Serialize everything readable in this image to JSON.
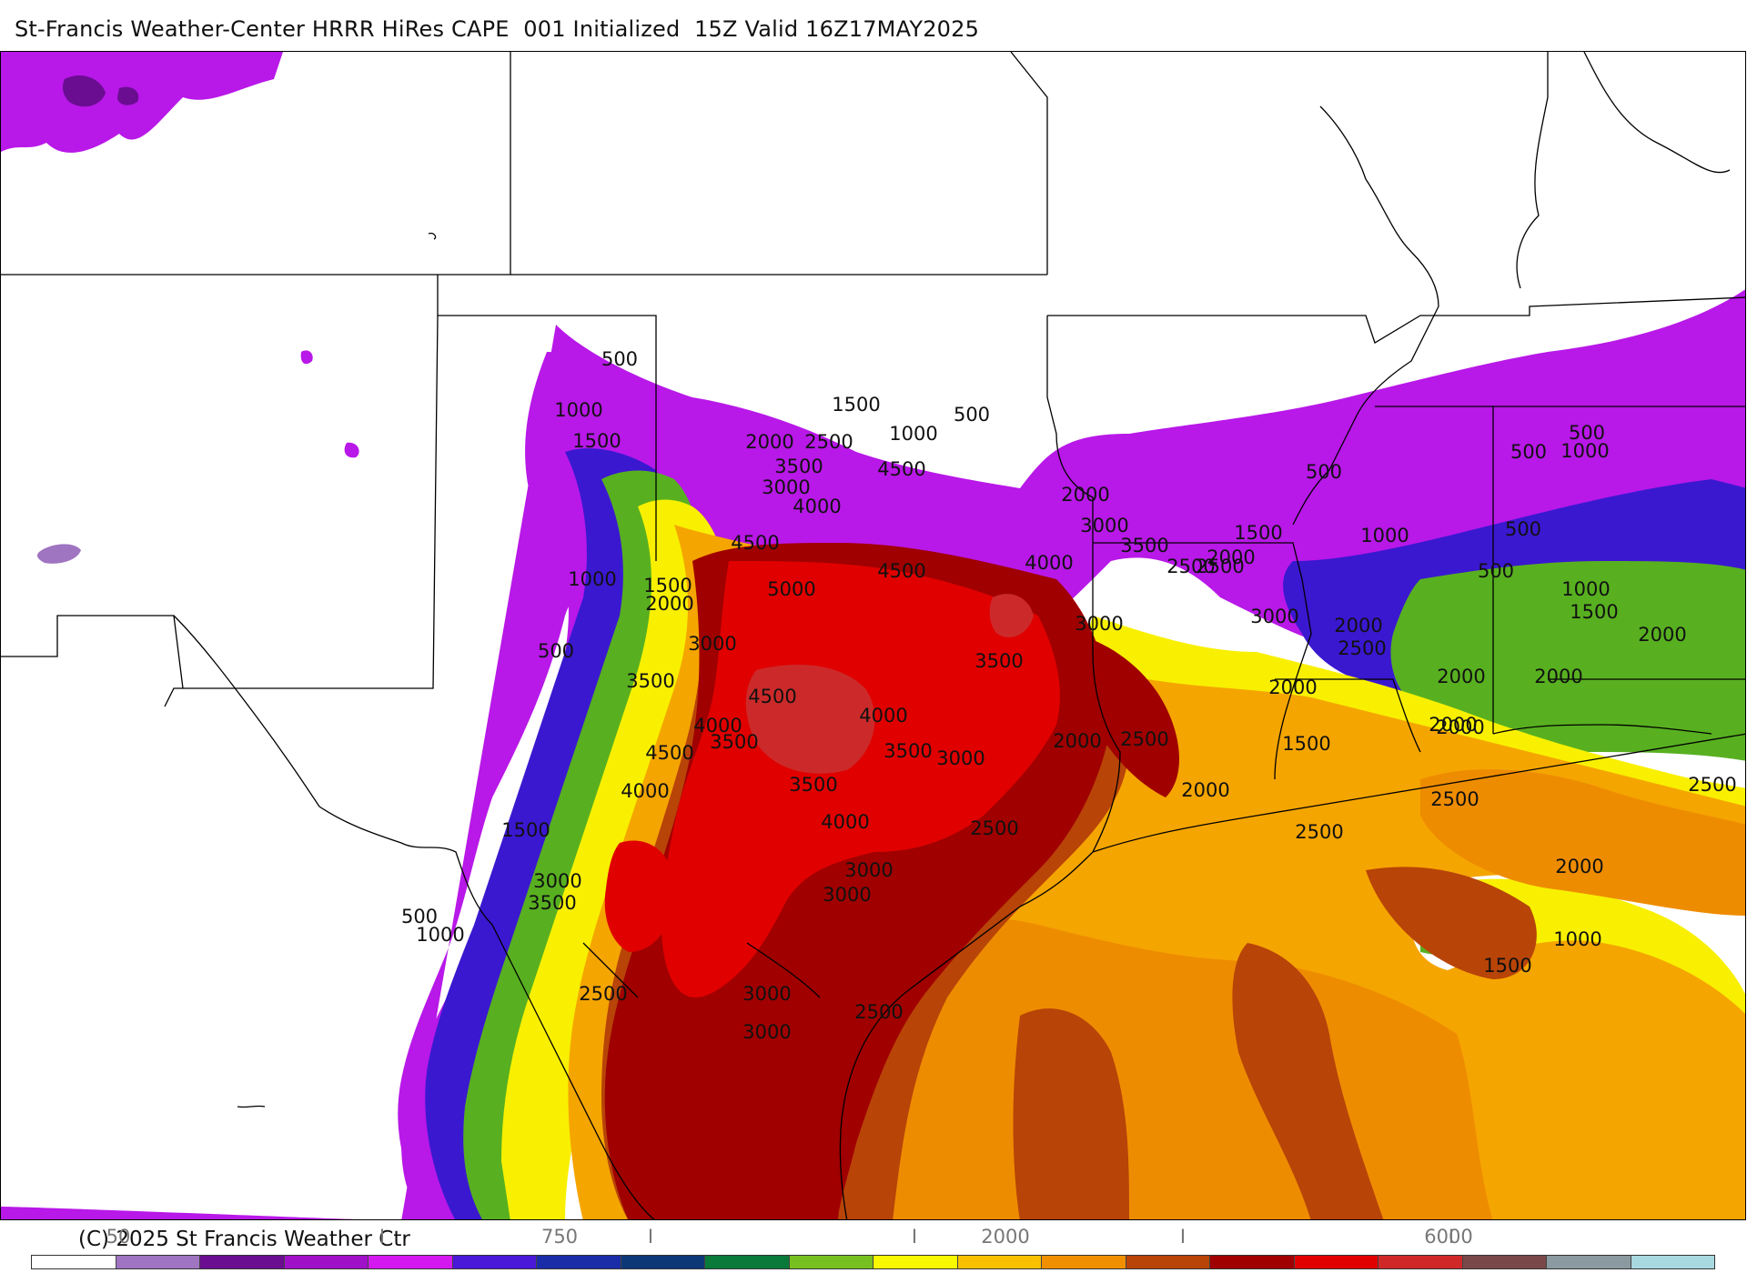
{
  "title": "St-Francis Weather-Center HRRR HiRes CAPE  001 Initialized  15Z Valid 16Z17MAY2025",
  "copyright": "(C) 2025 St Francis Weather Ctr",
  "colorbar": {
    "ticks": [
      {
        "label": "50",
        "value": 50
      },
      {
        "label": "I",
        "value": 250
      },
      {
        "label": "750",
        "value": 750
      },
      {
        "label": "I",
        "value": 1250
      },
      {
        "label": "I",
        "value": 1750
      },
      {
        "label": "2000",
        "value": 2000
      },
      {
        "label": "I",
        "value": 2750
      },
      {
        "label": "I",
        "value": 4250
      },
      {
        "label": "6000",
        "value": 6000
      }
    ],
    "colors": [
      "#ffffff",
      "#9f74c0",
      "#6a0d91",
      "#a010c8",
      "#d418f0",
      "#4a18d8",
      "#1a2ca8",
      "#0d3878",
      "#0a7a3a",
      "#78c020",
      "#f8f800",
      "#f8c000",
      "#f09000",
      "#b84408",
      "#a00000",
      "#e00000",
      "#d02828",
      "#7a4848",
      "#8a9aa0",
      "#a8d8e0"
    ]
  },
  "map": {
    "contour_labels": [
      {
        "text": "500",
        "id": "c1"
      },
      {
        "text": "1000",
        "id": "c2"
      },
      {
        "text": "1500",
        "id": "c3"
      },
      {
        "text": "1500",
        "id": "c4"
      },
      {
        "text": "1000",
        "id": "c5"
      },
      {
        "text": "500",
        "id": "c6"
      },
      {
        "text": "2000",
        "id": "c7"
      },
      {
        "text": "2500",
        "id": "c8"
      },
      {
        "text": "3500",
        "id": "c9"
      },
      {
        "text": "3000",
        "id": "c10"
      },
      {
        "text": "4500",
        "id": "c11"
      },
      {
        "text": "4000",
        "id": "c12"
      },
      {
        "text": "4500",
        "id": "c13"
      },
      {
        "text": "4500",
        "id": "c14"
      },
      {
        "text": "5000",
        "id": "c15"
      },
      {
        "text": "1000",
        "id": "c16"
      },
      {
        "text": "1500",
        "id": "c17"
      },
      {
        "text": "2000",
        "id": "c18"
      },
      {
        "text": "500",
        "id": "c19"
      },
      {
        "text": "3000",
        "id": "c20"
      },
      {
        "text": "3500",
        "id": "c21"
      },
      {
        "text": "2500",
        "id": "c22"
      },
      {
        "text": "4500",
        "id": "c23"
      },
      {
        "text": "4000",
        "id": "c24"
      },
      {
        "text": "3500",
        "id": "c25"
      },
      {
        "text": "4500",
        "id": "c26"
      },
      {
        "text": "4000",
        "id": "c27"
      },
      {
        "text": "3500",
        "id": "c28"
      },
      {
        "text": "3000",
        "id": "c29"
      },
      {
        "text": "4000",
        "id": "c30"
      },
      {
        "text": "3500",
        "id": "c31"
      },
      {
        "text": "4000",
        "id": "c32"
      },
      {
        "text": "2000",
        "id": "c33"
      },
      {
        "text": "3000",
        "id": "c34"
      },
      {
        "text": "3500",
        "id": "c35"
      },
      {
        "text": "2500",
        "id": "c36"
      },
      {
        "text": "4000",
        "id": "c37"
      },
      {
        "text": "3000",
        "id": "c38"
      },
      {
        "text": "1500",
        "id": "c39"
      },
      {
        "text": "2000",
        "id": "c40"
      },
      {
        "text": "3000",
        "id": "c41"
      },
      {
        "text": "3500",
        "id": "c42"
      },
      {
        "text": "500",
        "id": "c43"
      },
      {
        "text": "1000",
        "id": "c44"
      },
      {
        "text": "2500",
        "id": "c45"
      },
      {
        "text": "3000",
        "id": "c46"
      },
      {
        "text": "3500",
        "id": "c47"
      },
      {
        "text": "3000",
        "id": "c48"
      },
      {
        "text": "3000",
        "id": "c49"
      },
      {
        "text": "1500",
        "id": "c50"
      },
      {
        "text": "3000",
        "id": "c51"
      },
      {
        "text": "2500",
        "id": "c52"
      },
      {
        "text": "2500",
        "id": "c53"
      },
      {
        "text": "3000",
        "id": "c54"
      },
      {
        "text": "2000",
        "id": "c55"
      },
      {
        "text": "2500",
        "id": "c56"
      },
      {
        "text": "2000",
        "id": "c57"
      },
      {
        "text": "2500",
        "id": "c58"
      },
      {
        "text": "2000",
        "id": "c59"
      },
      {
        "text": "1500",
        "id": "c60"
      },
      {
        "text": "500",
        "id": "c61"
      },
      {
        "text": "1000",
        "id": "c62"
      },
      {
        "text": "500",
        "id": "c63"
      },
      {
        "text": "500",
        "id": "c64"
      },
      {
        "text": "500",
        "id": "c65"
      },
      {
        "text": "1000",
        "id": "c66"
      },
      {
        "text": "500",
        "id": "c67"
      },
      {
        "text": "1000",
        "id": "c68"
      },
      {
        "text": "1500",
        "id": "c69"
      },
      {
        "text": "2000",
        "id": "c70"
      },
      {
        "text": "2000",
        "id": "c71"
      },
      {
        "text": "2000",
        "id": "c72"
      },
      {
        "text": "2000",
        "id": "c73"
      },
      {
        "text": "2000",
        "id": "c74"
      },
      {
        "text": "2500",
        "id": "c75"
      },
      {
        "text": "2000",
        "id": "c76"
      },
      {
        "text": "2500",
        "id": "c77"
      },
      {
        "text": "2000",
        "id": "c78"
      },
      {
        "text": "1000",
        "id": "c79"
      },
      {
        "text": "1500",
        "id": "c80"
      },
      {
        "text": "2500",
        "id": "c81"
      }
    ]
  }
}
